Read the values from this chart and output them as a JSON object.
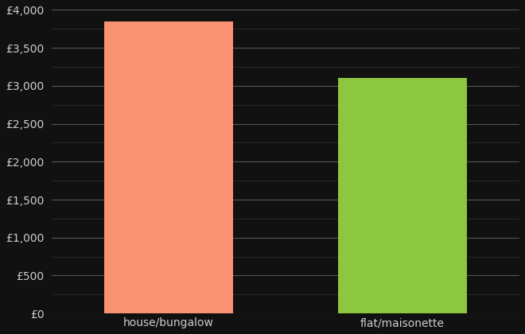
{
  "categories": [
    "house/bungalow",
    "flat/maisonette"
  ],
  "values": [
    3850,
    3100
  ],
  "bar_colors": [
    "#FA9171",
    "#8DC63F"
  ],
  "background_color": "#111111",
  "text_color": "#cccccc",
  "grid_color_major": "#555555",
  "grid_color_minor": "#333333",
  "ylim": [
    0,
    4000
  ],
  "yticks_major": [
    0,
    500,
    1000,
    1500,
    2000,
    2500,
    3000,
    3500,
    4000
  ],
  "yticks_minor": [
    250,
    750,
    1250,
    1750,
    2250,
    2750,
    3250,
    3750
  ],
  "bar_width": 0.55,
  "xlabel_fontsize": 10,
  "ylabel_fontsize": 10
}
